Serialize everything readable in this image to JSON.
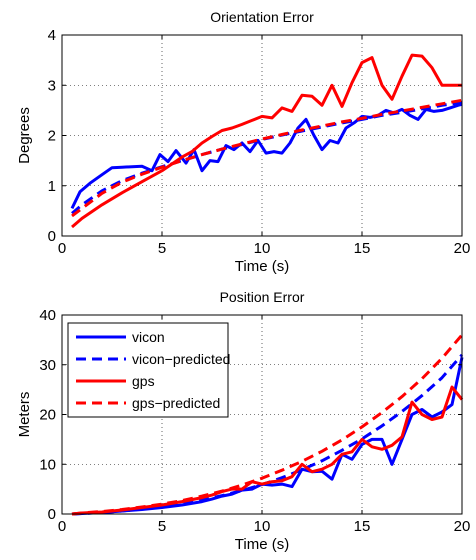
{
  "chart_data": [
    {
      "type": "line",
      "title": "Orientation Error",
      "xlabel": "Time (s)",
      "ylabel": "Degrees",
      "xlim": [
        0,
        20
      ],
      "ylim": [
        0,
        4
      ],
      "xticks": [
        0,
        5,
        10,
        15,
        20
      ],
      "yticks": [
        0,
        1,
        2,
        3,
        4
      ],
      "grid": true,
      "legend": null,
      "series": [
        {
          "id": "vicon",
          "color": "#0000ff",
          "style": "solid",
          "x": [
            0.5,
            0.9,
            1.4,
            2.0,
            2.5,
            3.0,
            3.5,
            4.0,
            4.5,
            4.9,
            5.3,
            5.7,
            6.2,
            6.6,
            7.0,
            7.4,
            7.8,
            8.2,
            8.6,
            9.0,
            9.4,
            9.8,
            10.2,
            10.6,
            11.0,
            11.4,
            11.8,
            12.2,
            12.6,
            13.0,
            13.4,
            13.8,
            14.2,
            14.6,
            15.0,
            15.4,
            15.8,
            16.2,
            16.6,
            17.0,
            17.4,
            17.8,
            18.2,
            18.6,
            19.0,
            19.4,
            19.8,
            20.0
          ],
          "y": [
            0.55,
            0.88,
            1.05,
            1.22,
            1.36,
            1.37,
            1.38,
            1.39,
            1.3,
            1.62,
            1.48,
            1.7,
            1.45,
            1.72,
            1.3,
            1.5,
            1.48,
            1.8,
            1.72,
            1.85,
            1.68,
            1.9,
            1.65,
            1.68,
            1.65,
            1.85,
            2.15,
            2.32,
            2.0,
            1.72,
            1.9,
            1.85,
            2.15,
            2.25,
            2.38,
            2.36,
            2.4,
            2.5,
            2.45,
            2.52,
            2.4,
            2.32,
            2.52,
            2.48,
            2.5,
            2.55,
            2.6,
            2.62
          ]
        },
        {
          "id": "vicon-predicted",
          "color": "#0000ff",
          "style": "dashed",
          "x": [
            0.5,
            1,
            2,
            3,
            4,
            5,
            6,
            7,
            8,
            9,
            10,
            11,
            12,
            13,
            14,
            15,
            16,
            17,
            18,
            19,
            20
          ],
          "y": [
            0.45,
            0.62,
            0.9,
            1.1,
            1.25,
            1.38,
            1.5,
            1.62,
            1.73,
            1.82,
            1.92,
            2.01,
            2.09,
            2.17,
            2.25,
            2.32,
            2.4,
            2.46,
            2.53,
            2.6,
            2.66
          ]
        },
        {
          "id": "gps",
          "color": "#ff0000",
          "style": "solid",
          "x": [
            0.5,
            1,
            2,
            3,
            4,
            5,
            6,
            6.5,
            7,
            7.5,
            8,
            8.5,
            9,
            9.5,
            10,
            10.5,
            11,
            11.5,
            12,
            12.5,
            13,
            13.5,
            14,
            14.5,
            15,
            15.5,
            16,
            16.5,
            17,
            17.5,
            18,
            18.5,
            19,
            19.5,
            20
          ],
          "y": [
            0.18,
            0.35,
            0.62,
            0.86,
            1.08,
            1.3,
            1.57,
            1.68,
            1.85,
            1.98,
            2.1,
            2.15,
            2.22,
            2.3,
            2.38,
            2.35,
            2.55,
            2.48,
            2.8,
            2.78,
            2.6,
            3.0,
            2.58,
            3.05,
            3.45,
            3.55,
            3.0,
            2.72,
            3.18,
            3.6,
            3.58,
            3.35,
            3.0,
            3.0,
            3.0
          ]
        },
        {
          "id": "gps-predicted",
          "color": "#ff0000",
          "style": "dashed",
          "x": [
            0.5,
            1,
            2,
            3,
            4,
            5,
            6,
            7,
            8,
            9,
            10,
            11,
            12,
            13,
            14,
            15,
            16,
            17,
            18,
            19,
            20
          ],
          "y": [
            0.4,
            0.55,
            0.85,
            1.07,
            1.23,
            1.37,
            1.5,
            1.62,
            1.73,
            1.83,
            1.93,
            2.02,
            2.11,
            2.19,
            2.27,
            2.34,
            2.42,
            2.49,
            2.56,
            2.63,
            2.7
          ]
        }
      ]
    },
    {
      "type": "line",
      "title": "Position Error",
      "xlabel": "Time (s)",
      "ylabel": "Meters",
      "xlim": [
        0,
        20
      ],
      "ylim": [
        0,
        40
      ],
      "xticks": [
        0,
        5,
        10,
        15,
        20
      ],
      "yticks": [
        0,
        10,
        20,
        30,
        40
      ],
      "grid": true,
      "legend": "top-left",
      "series": [
        {
          "name": "vicon",
          "color": "#0000ff",
          "style": "solid",
          "x": [
            0.5,
            1,
            2,
            3,
            4,
            5,
            6,
            7,
            7.5,
            8,
            8.5,
            9,
            9.5,
            10,
            10.5,
            11,
            11.5,
            12,
            12.5,
            13,
            13.5,
            14,
            14.5,
            15,
            15.5,
            16,
            16.5,
            17,
            17.5,
            18,
            18.5,
            19,
            19.5,
            20
          ],
          "y": [
            0,
            0.1,
            0.3,
            0.6,
            0.9,
            1.3,
            1.8,
            2.5,
            3.0,
            3.6,
            4.0,
            4.8,
            5.0,
            6.0,
            5.8,
            6.0,
            5.5,
            9.0,
            8.5,
            8.6,
            7.0,
            12.0,
            11.0,
            14.0,
            15.0,
            15.0,
            10.0,
            15.0,
            20.0,
            21.0,
            19.5,
            20.5,
            22.0,
            31.5
          ]
        },
        {
          "name": "vicon−predicted",
          "color": "#0000ff",
          "style": "dashed",
          "x": [
            0.5,
            1,
            2,
            3,
            4,
            5,
            6,
            7,
            8,
            9,
            10,
            11,
            12,
            13,
            14,
            15,
            16,
            17,
            18,
            19,
            20
          ],
          "y": [
            0,
            0.1,
            0.3,
            0.6,
            1.0,
            1.5,
            2.1,
            2.8,
            3.7,
            4.7,
            5.9,
            7.3,
            8.9,
            10.7,
            12.8,
            15.1,
            17.7,
            20.6,
            23.8,
            27.4,
            32.0
          ]
        },
        {
          "name": "gps",
          "color": "#ff0000",
          "style": "solid",
          "x": [
            0.5,
            1,
            2,
            3,
            4,
            5,
            6,
            7,
            7.5,
            8,
            8.5,
            9,
            9.5,
            10,
            10.5,
            11,
            11.5,
            12,
            12.5,
            13,
            13.5,
            14,
            14.5,
            15,
            15.5,
            16,
            16.5,
            17,
            17.5,
            18,
            18.5,
            19,
            19.5,
            20
          ],
          "y": [
            0,
            0.2,
            0.4,
            0.8,
            1.3,
            1.8,
            2.5,
            3.3,
            3.8,
            4.5,
            5.0,
            5.0,
            6.5,
            6.0,
            6.5,
            6.7,
            7.5,
            10.0,
            8.5,
            9.0,
            10.0,
            12.0,
            12.5,
            15.0,
            13.5,
            13.0,
            13.8,
            15.5,
            22.5,
            20.0,
            19.0,
            19.5,
            25.5,
            23.0
          ]
        },
        {
          "name": "gps−predicted",
          "color": "#ff0000",
          "style": "dashed",
          "x": [
            0.5,
            1,
            2,
            3,
            4,
            5,
            6,
            7,
            8,
            9,
            10,
            11,
            12,
            13,
            14,
            15,
            16,
            17,
            18,
            19,
            20
          ],
          "y": [
            0,
            0.2,
            0.5,
            0.9,
            1.4,
            2.0,
            2.7,
            3.6,
            4.6,
            5.8,
            7.2,
            8.8,
            10.6,
            12.6,
            14.9,
            17.5,
            20.4,
            23.6,
            27.2,
            31.3,
            36.0
          ]
        }
      ]
    }
  ]
}
